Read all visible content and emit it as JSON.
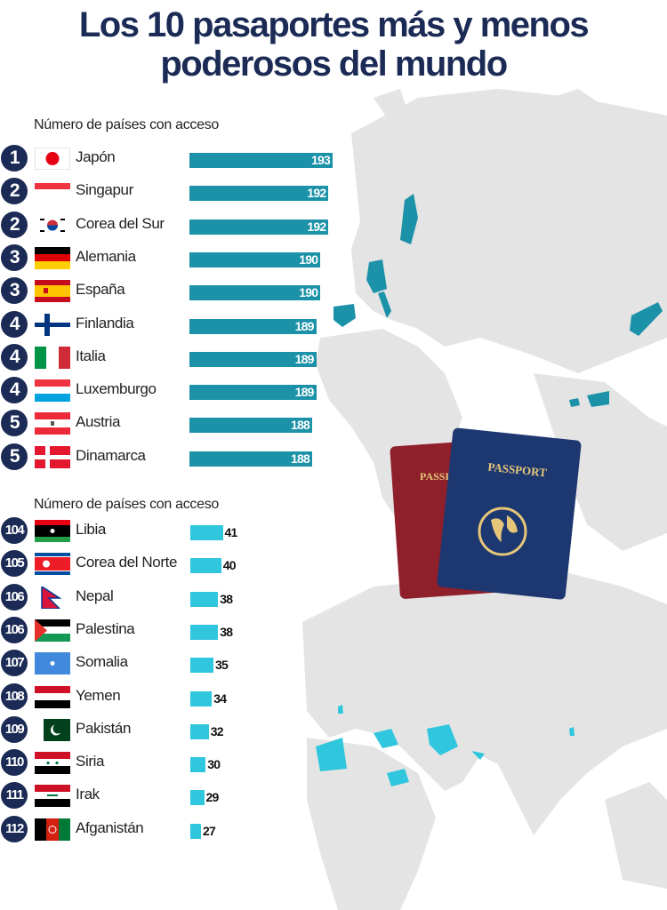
{
  "title_line1": "Los 10 pasaportes más y menos",
  "title_line2": "poderosos del mundo",
  "passport_label": "PASSPORT",
  "colors": {
    "title": "#1b2b55",
    "top_bars": "#1b92a8",
    "bottom_bars": "#2fc6de",
    "map": "#e3e3e3"
  },
  "chart_data": [
    {
      "type": "bar",
      "orientation": "horizontal",
      "subtitle": "Número de países con acceso",
      "ranks": [
        "1",
        "2",
        "2",
        "3",
        "3",
        "4",
        "4",
        "4",
        "5",
        "5"
      ],
      "categories": [
        "Japón",
        "Singapur",
        "Corea del Sur",
        "Alemania",
        "España",
        "Finlandia",
        "Italia",
        "Luxemburgo",
        "Austria",
        "Dinamarca"
      ],
      "flags": [
        "jp",
        "sg",
        "kr",
        "de",
        "es",
        "fi",
        "it",
        "lu",
        "at",
        "dk"
      ],
      "values": [
        193,
        192,
        192,
        190,
        190,
        189,
        189,
        189,
        188,
        188
      ]
    },
    {
      "type": "bar",
      "orientation": "horizontal",
      "subtitle": "Número de países con acceso",
      "ranks": [
        "104",
        "105",
        "106",
        "106",
        "107",
        "108",
        "109",
        "110",
        "111",
        "112"
      ],
      "categories": [
        "Libia",
        "Corea del Norte",
        "Nepal",
        "Palestina",
        "Somalia",
        "Yemen",
        "Pakistán",
        "Siria",
        "Irak",
        "Afganistán"
      ],
      "flags": [
        "ly",
        "kp",
        "np",
        "ps",
        "so",
        "ye",
        "pk",
        "sy",
        "iq",
        "af"
      ],
      "values": [
        41,
        40,
        38,
        38,
        35,
        34,
        32,
        30,
        29,
        27
      ]
    }
  ]
}
